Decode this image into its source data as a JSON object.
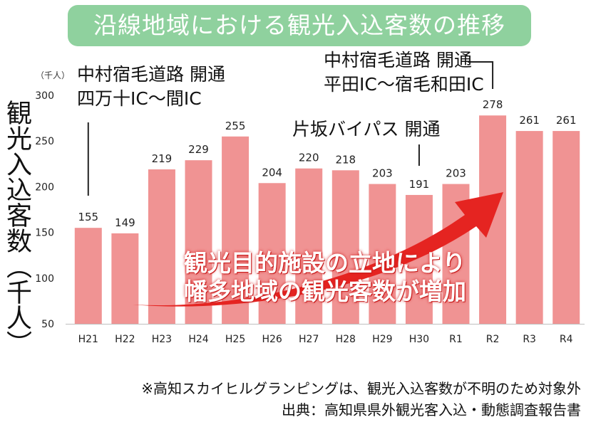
{
  "title": "沿線地域における観光入込客数の推移",
  "chart_data": {
    "type": "bar",
    "categories": [
      "H21",
      "H22",
      "H23",
      "H24",
      "H25",
      "H26",
      "H27",
      "H28",
      "H29",
      "H30",
      "R1",
      "R2",
      "R3",
      "R4"
    ],
    "values": [
      155,
      149,
      219,
      229,
      255,
      204,
      220,
      218,
      203,
      191,
      203,
      278,
      261,
      261
    ],
    "ylabel": "観光入込客数（千人）",
    "unit": "（千人）",
    "ylim": [
      50,
      300
    ],
    "yticks": [
      50,
      100,
      150,
      200,
      250,
      300
    ],
    "bar_color": "#f09393",
    "grid": false,
    "annotations": [
      {
        "lines": [
          "中村宿毛道路 開通",
          "四万十IC～間IC"
        ],
        "category": "H21"
      },
      {
        "lines": [
          "片坂バイパス 開通"
        ],
        "category": "H30"
      },
      {
        "lines": [
          "中村宿毛道路 開通",
          "平田IC～宿毛和田IC"
        ],
        "category": "R2"
      }
    ],
    "arrow_text": [
      "観光目的施設の立地により",
      "幡多地域の観光客数が増加"
    ],
    "arrow_color": "#e52421"
  },
  "footnotes": {
    "note": "※高知スカイヒルグランピングは、観光入込客数が不明のため対象外",
    "source": "出典：高知県県外観光客入込・動態調査報告書"
  }
}
